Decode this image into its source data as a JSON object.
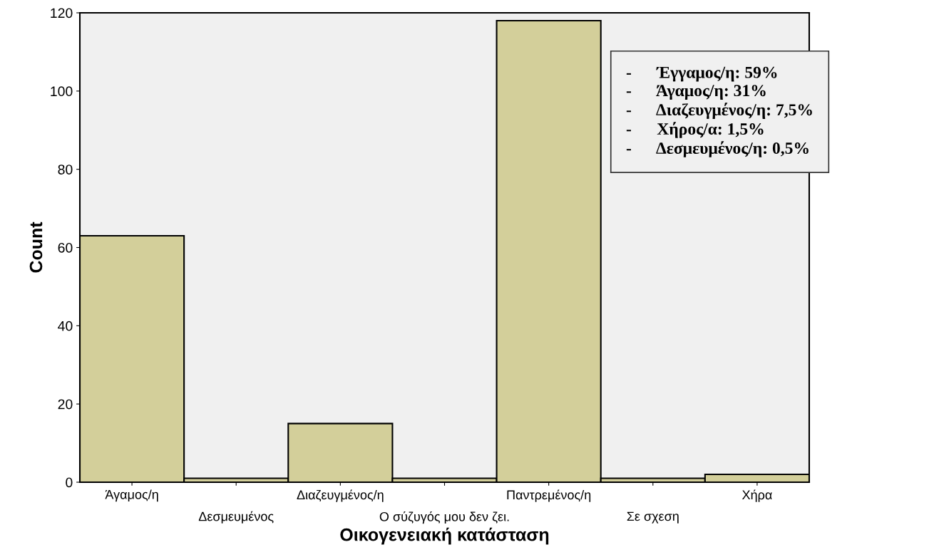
{
  "chart_data": {
    "type": "bar",
    "categories": [
      "Άγαμος/η",
      "Δεσμευμένος",
      "Διαζευγμένος/η",
      "Ο σύζυγός μου δεν ζει.",
      "Παντρεμένος/η",
      "Σε σχεση",
      "Χήρα"
    ],
    "values": [
      63,
      1,
      15,
      1,
      118,
      1,
      2
    ],
    "color": "#d3cf9a",
    "xlabel": "Οικογενειακή κατάσταση",
    "ylabel": "Count",
    "ylim": [
      0,
      120
    ],
    "yticks": [
      0,
      20,
      40,
      60,
      80,
      100,
      120
    ],
    "annotations": [
      "-      Έγγαμος/η: 59%",
      "-      Άγαμος/η: 31%",
      "-      Διαζευγμένος/η: 7,5%",
      "-      Χήρος/α: 1,5%",
      "-      Δεσμευμένος/η: 0,5%"
    ],
    "grid": false,
    "legend": false
  }
}
